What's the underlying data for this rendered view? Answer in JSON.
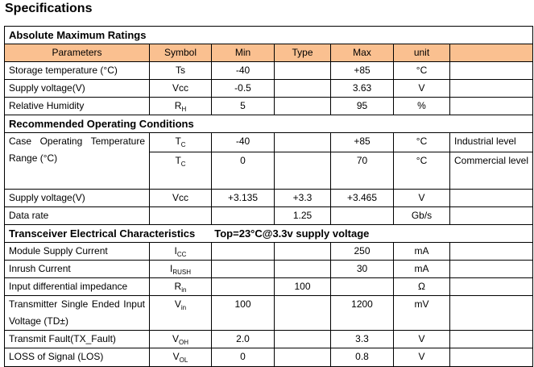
{
  "title": "Specifications",
  "table": {
    "sections": [
      {
        "title": "Absolute Maximum Ratings",
        "header": [
          "Parameters",
          "Symbol",
          "Min",
          "Type",
          "Max",
          "unit"
        ],
        "rows": [
          {
            "parameter": "Storage temperature (°C)",
            "symbol": {
              "base": "Ts"
            },
            "min": "-40",
            "max": "+85",
            "unit": "°C"
          },
          {
            "parameter": "Supply voltage(V)",
            "symbol": {
              "base": "Vcc"
            },
            "min": "-0.5",
            "max": "3.63",
            "unit": "V"
          },
          {
            "parameter": "Relative Humidity",
            "symbol": {
              "base": "R",
              "sub": "H"
            },
            "min": "5",
            "max": "95",
            "unit": "%"
          }
        ]
      },
      {
        "title": "Recommended Operating Conditions",
        "rows": [
          {
            "parameter": "Case Operating Temperature Range (°C)",
            "sub_rows": [
              {
                "symbol": {
                  "base": "T",
                  "sub": "C"
                },
                "min": "-40",
                "max": "+85",
                "unit": "°C",
                "note": "Industrial level"
              },
              {
                "symbol": {
                  "base": "T",
                  "sub": "C"
                },
                "min": "0",
                "max": "70",
                "unit": "°C",
                "note": "Commercial level"
              }
            ]
          },
          {
            "parameter": "Supply voltage(V)",
            "symbol": {
              "base": "Vcc"
            },
            "min": "+3.135",
            "type": "+3.3",
            "max": "+3.465",
            "unit": "V"
          },
          {
            "parameter": "Data rate",
            "type": "1.25",
            "unit": "Gb/s"
          }
        ]
      },
      {
        "title": "Transceiver Electrical Characteristics",
        "note": "Top=23°C@3.3v supply voltage",
        "rows": [
          {
            "parameter": "Module Supply Current",
            "symbol": {
              "base": "I",
              "sub": "CC"
            },
            "max": "250",
            "unit": "mA"
          },
          {
            "parameter": "Inrush Current",
            "symbol": {
              "base": "I",
              "sub": "RUSH"
            },
            "max": "30",
            "unit": "mA"
          },
          {
            "parameter": "Input differential impedance",
            "symbol": {
              "base": "R",
              "sub": "in"
            },
            "type": "100",
            "unit": "Ω"
          },
          {
            "parameter": "Transmitter Single Ended Input Voltage (TD±)",
            "symbol": {
              "base": "V",
              "sub": "in"
            },
            "min": "100",
            "max": "1200",
            "unit": "mV"
          },
          {
            "parameter": "Transmit Fault(TX_Fault)",
            "symbol": {
              "base": "V",
              "sub": "OH"
            },
            "min": "2.0",
            "max": "3.3",
            "unit": "V"
          },
          {
            "parameter": "LOSS of Signal (LOS)",
            "symbol": {
              "base": "V",
              "sub": "OL"
            },
            "min": "0",
            "max": "0.8",
            "unit": "V"
          }
        ]
      }
    ]
  }
}
